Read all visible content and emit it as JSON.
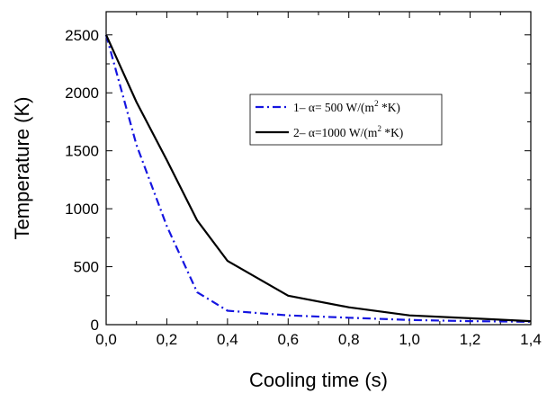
{
  "chart_data": {
    "type": "line",
    "xlabel": "Cooling time (s)",
    "ylabel": "Temperature (K)",
    "xlim": [
      0,
      1.4
    ],
    "ylim": [
      0,
      2700
    ],
    "x_ticks": [
      "0,0",
      "0,2",
      "0,4",
      "0,6",
      "0,8",
      "1,0",
      "1,2",
      "1,4"
    ],
    "y_ticks": [
      "0",
      "500",
      "1000",
      "1500",
      "2000",
      "2500"
    ],
    "x_tick_values": [
      0,
      0.2,
      0.4,
      0.6,
      0.8,
      1.0,
      1.2,
      1.4
    ],
    "y_tick_values": [
      0,
      500,
      1000,
      1500,
      2000,
      2500
    ],
    "grid": false,
    "legend_position": "top-right",
    "series": [
      {
        "name": "1– α= 500 W/(m² *K)",
        "legend_main": "1– α= 500 W/(m",
        "legend_sup": "2",
        "legend_end": " *K)",
        "color": "#1515e0",
        "style": "dash-dot",
        "x": [
          0.0,
          0.1,
          0.2,
          0.3,
          0.4,
          0.6,
          0.8,
          1.0,
          1.2,
          1.4
        ],
        "y": [
          2500,
          1550,
          850,
          280,
          120,
          80,
          60,
          40,
          30,
          25
        ]
      },
      {
        "name": "2– α=1000 W/(m² *K)",
        "legend_main": "2– α=1000 W/(m",
        "legend_sup": "2",
        "legend_end": " *K)",
        "color": "#000000",
        "style": "solid",
        "x": [
          0.0,
          0.1,
          0.2,
          0.3,
          0.4,
          0.6,
          0.8,
          1.0,
          1.2,
          1.4
        ],
        "y": [
          2500,
          1920,
          1420,
          900,
          550,
          250,
          150,
          80,
          55,
          30
        ]
      }
    ]
  }
}
